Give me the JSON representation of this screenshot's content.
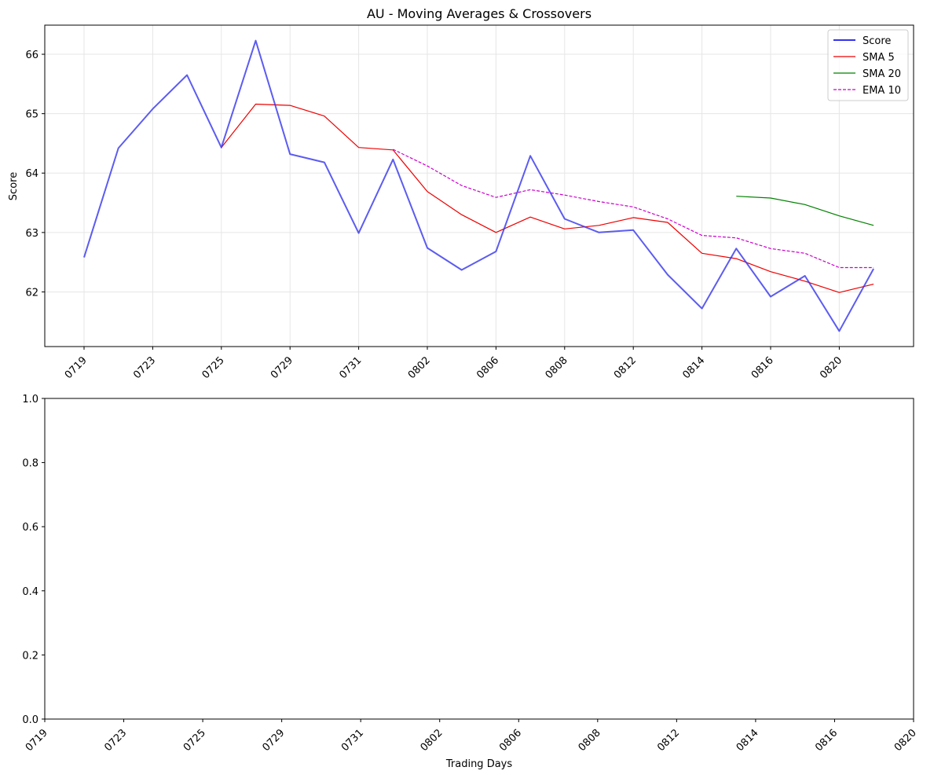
{
  "chart_data": [
    {
      "type": "line",
      "title": "AU - Moving Averages & Crossovers",
      "xlabel": "",
      "ylabel": "Score",
      "ylim": [
        61.08,
        66.49
      ],
      "yticks": [
        62,
        63,
        64,
        65,
        66
      ],
      "x_tick_labels": [
        "0719",
        "0723",
        "0725",
        "0729",
        "0731",
        "0802",
        "0806",
        "0808",
        "0812",
        "0814",
        "0816",
        "0820"
      ],
      "x_tick_indices": [
        0,
        2,
        4,
        6,
        8,
        10,
        12,
        14,
        16,
        18,
        20,
        22
      ],
      "n_points": 24,
      "grid": true,
      "legend_position": "top-right",
      "series": [
        {
          "name": "Score",
          "color": "#3333ee",
          "style": "solid",
          "start_index": 0,
          "values": [
            62.58,
            64.42,
            65.08,
            65.65,
            64.43,
            66.23,
            64.32,
            64.18,
            62.99,
            64.23,
            62.74,
            62.37,
            62.68,
            64.29,
            63.23,
            63.0,
            63.04,
            62.29,
            61.72,
            62.73,
            61.92,
            62.27,
            61.34,
            62.39
          ]
        },
        {
          "name": "SMA 5",
          "color": "#ee0000",
          "style": "solid",
          "start_index": 4,
          "values": [
            64.43,
            65.16,
            65.14,
            64.96,
            64.43,
            64.39,
            63.69,
            63.3,
            63.0,
            63.26,
            63.06,
            63.12,
            63.25,
            63.17,
            62.65,
            62.56,
            62.34,
            62.18,
            61.99,
            62.13
          ]
        },
        {
          "name": "SMA 20",
          "color": "#008000",
          "style": "solid",
          "start_index": 19,
          "values": [
            63.61,
            63.58,
            63.47,
            63.28,
            63.12
          ]
        },
        {
          "name": "EMA 10",
          "color": "#cc00cc",
          "style": "dashed",
          "start_index": 9,
          "values": [
            64.4,
            64.12,
            63.79,
            63.59,
            63.72,
            63.63,
            63.52,
            63.43,
            63.23,
            62.95,
            62.91,
            62.73,
            62.65,
            62.41,
            62.41
          ]
        }
      ]
    },
    {
      "type": "line",
      "title": "",
      "xlabel": "Trading Days",
      "ylabel": "",
      "ylim": [
        0.0,
        1.0
      ],
      "yticks": [
        "0.0",
        "0.2",
        "0.4",
        "0.6",
        "0.8",
        "1.0"
      ],
      "x_tick_labels": [
        "0719",
        "0723",
        "0725",
        "0729",
        "0731",
        "0802",
        "0806",
        "0808",
        "0812",
        "0814",
        "0816",
        "0820"
      ],
      "grid": false,
      "series": []
    }
  ]
}
